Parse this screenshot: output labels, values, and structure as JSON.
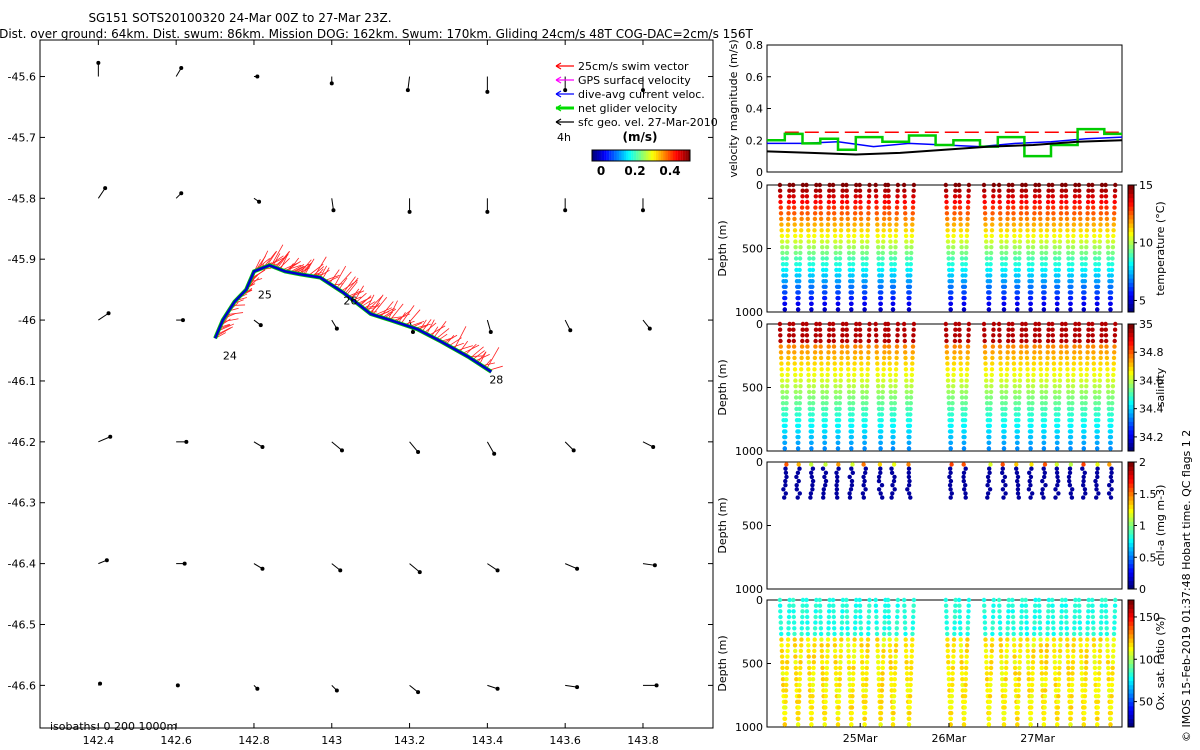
{
  "title_line1": "SG151 SOTS20100320 24-Mar 00Z to 27-Mar 23Z.",
  "title_line2": "Dist. over ground: 64km. Dist. swum: 86km. Mission DOG: 162km. Swum: 170km. Gliding 24cm/s 48T COG-DAC=2cm/s 156T",
  "legend": {
    "items": [
      {
        "label": "25cm/s swim vector",
        "color": "#ff0000"
      },
      {
        "label": "GPS surface velocity",
        "color": "#ff00ff"
      },
      {
        "label": "dive-avg current veloc.",
        "color": "#0000ff"
      },
      {
        "label": "net glider velocity",
        "color": "#00dd00"
      },
      {
        "label": "sfc geo. vel. 27-Mar-2010",
        "color": "#000000"
      }
    ],
    "time_note": "4h",
    "colorbar_unit": "(m/s)",
    "colorbar_ticks": [
      "0",
      "0.2",
      "0.4"
    ]
  },
  "isobaths_label": "isobaths: 0   200  1000m",
  "copyright": "© IMOS 15-Feb-2019 01:37:48 Hobart time. QC flags 1  2",
  "chart_data": [
    {
      "type": "map",
      "xlim": [
        142.25,
        143.98
      ],
      "ylim": [
        -46.67,
        -45.54
      ],
      "xticks": [
        "142.4",
        "142.6",
        "142.8",
        "143",
        "143.2",
        "143.4",
        "143.6",
        "143.8"
      ],
      "yticks": [
        "-45.6",
        "-45.7",
        "-45.8",
        "-45.9",
        "-46",
        "-46.1",
        "-46.2",
        "-46.3",
        "-46.4",
        "-46.5",
        "-46.6"
      ],
      "track_labels": [
        {
          "text": "24",
          "lon": 142.72,
          "lat": -46.035
        },
        {
          "text": "25",
          "lon": 142.81,
          "lat": -45.935
        },
        {
          "text": "26",
          "lon": 143.03,
          "lat": -45.945
        },
        {
          "text": "28",
          "lon": 143.405,
          "lat": -46.075
        }
      ],
      "track": [
        [
          142.7,
          -46.03
        ],
        [
          142.72,
          -46.0
        ],
        [
          142.75,
          -45.97
        ],
        [
          142.78,
          -45.95
        ],
        [
          142.8,
          -45.92
        ],
        [
          142.84,
          -45.91
        ],
        [
          142.88,
          -45.92
        ],
        [
          142.92,
          -45.925
        ],
        [
          142.97,
          -45.93
        ],
        [
          143.03,
          -45.955
        ],
        [
          143.07,
          -45.975
        ],
        [
          143.1,
          -45.99
        ],
        [
          143.15,
          -46.0
        ],
        [
          143.22,
          -46.015
        ],
        [
          143.28,
          -46.035
        ],
        [
          143.35,
          -46.06
        ],
        [
          143.41,
          -46.085
        ]
      ],
      "geo_vectors": [
        {
          "lon": 142.4,
          "lat": -45.6,
          "u": 0.0,
          "v": 0.08
        },
        {
          "lon": 142.6,
          "lat": -45.6,
          "u": 0.03,
          "v": 0.05
        },
        {
          "lon": 142.8,
          "lat": -45.6,
          "u": 0.02,
          "v": 0.0
        },
        {
          "lon": 143.0,
          "lat": -45.6,
          "u": 0.0,
          "v": -0.04
        },
        {
          "lon": 143.2,
          "lat": -45.6,
          "u": -0.01,
          "v": -0.08
        },
        {
          "lon": 143.4,
          "lat": -45.6,
          "u": 0.0,
          "v": -0.09
        },
        {
          "lon": 143.6,
          "lat": -45.6,
          "u": 0.0,
          "v": -0.08
        },
        {
          "lon": 143.8,
          "lat": -45.6,
          "u": 0.0,
          "v": -0.08
        },
        {
          "lon": 142.4,
          "lat": -45.8,
          "u": 0.04,
          "v": 0.06
        },
        {
          "lon": 142.6,
          "lat": -45.8,
          "u": 0.03,
          "v": 0.03
        },
        {
          "lon": 142.8,
          "lat": -45.8,
          "u": 0.03,
          "v": -0.02
        },
        {
          "lon": 143.0,
          "lat": -45.8,
          "u": 0.01,
          "v": -0.07
        },
        {
          "lon": 143.2,
          "lat": -45.8,
          "u": 0.0,
          "v": -0.08
        },
        {
          "lon": 143.4,
          "lat": -45.8,
          "u": 0.0,
          "v": -0.08
        },
        {
          "lon": 143.6,
          "lat": -45.8,
          "u": 0.0,
          "v": -0.07
        },
        {
          "lon": 143.8,
          "lat": -45.8,
          "u": 0.0,
          "v": -0.07
        },
        {
          "lon": 142.4,
          "lat": -46.0,
          "u": 0.06,
          "v": 0.04
        },
        {
          "lon": 142.6,
          "lat": -46.0,
          "u": 0.04,
          "v": 0.0
        },
        {
          "lon": 142.8,
          "lat": -46.0,
          "u": 0.04,
          "v": -0.03
        },
        {
          "lon": 143.0,
          "lat": -46.0,
          "u": 0.03,
          "v": -0.05
        },
        {
          "lon": 143.2,
          "lat": -46.0,
          "u": 0.02,
          "v": -0.07
        },
        {
          "lon": 143.4,
          "lat": -46.0,
          "u": 0.02,
          "v": -0.07
        },
        {
          "lon": 143.6,
          "lat": -46.0,
          "u": 0.03,
          "v": -0.06
        },
        {
          "lon": 143.8,
          "lat": -46.0,
          "u": 0.04,
          "v": -0.05
        },
        {
          "lon": 142.4,
          "lat": -46.2,
          "u": 0.07,
          "v": 0.03
        },
        {
          "lon": 142.6,
          "lat": -46.2,
          "u": 0.06,
          "v": 0.0
        },
        {
          "lon": 142.8,
          "lat": -46.2,
          "u": 0.05,
          "v": -0.03
        },
        {
          "lon": 143.0,
          "lat": -46.2,
          "u": 0.06,
          "v": -0.05
        },
        {
          "lon": 143.2,
          "lat": -46.2,
          "u": 0.05,
          "v": -0.06
        },
        {
          "lon": 143.4,
          "lat": -46.2,
          "u": 0.04,
          "v": -0.07
        },
        {
          "lon": 143.6,
          "lat": -46.2,
          "u": 0.05,
          "v": -0.05
        },
        {
          "lon": 143.8,
          "lat": -46.2,
          "u": 0.06,
          "v": -0.03
        },
        {
          "lon": 142.4,
          "lat": -46.4,
          "u": 0.05,
          "v": 0.02
        },
        {
          "lon": 142.6,
          "lat": -46.4,
          "u": 0.05,
          "v": 0.0
        },
        {
          "lon": 142.8,
          "lat": -46.4,
          "u": 0.05,
          "v": -0.03
        },
        {
          "lon": 143.0,
          "lat": -46.4,
          "u": 0.05,
          "v": -0.04
        },
        {
          "lon": 143.2,
          "lat": -46.4,
          "u": 0.06,
          "v": -0.05
        },
        {
          "lon": 143.4,
          "lat": -46.4,
          "u": 0.06,
          "v": -0.04
        },
        {
          "lon": 143.6,
          "lat": -46.4,
          "u": 0.07,
          "v": -0.03
        },
        {
          "lon": 143.8,
          "lat": -46.4,
          "u": 0.07,
          "v": -0.01
        },
        {
          "lon": 142.4,
          "lat": -46.6,
          "u": 0.01,
          "v": 0.01
        },
        {
          "lon": 142.6,
          "lat": -46.6,
          "u": 0.01,
          "v": 0.0
        },
        {
          "lon": 142.8,
          "lat": -46.6,
          "u": 0.02,
          "v": -0.02
        },
        {
          "lon": 143.0,
          "lat": -46.6,
          "u": 0.03,
          "v": -0.03
        },
        {
          "lon": 143.2,
          "lat": -46.6,
          "u": 0.05,
          "v": -0.04
        },
        {
          "lon": 143.4,
          "lat": -46.6,
          "u": 0.06,
          "v": -0.02
        },
        {
          "lon": 143.6,
          "lat": -46.6,
          "u": 0.07,
          "v": -0.01
        },
        {
          "lon": 143.8,
          "lat": -46.6,
          "u": 0.08,
          "v": 0.0
        }
      ]
    },
    {
      "type": "line",
      "ylabel": "velocity magnitude (m/s)",
      "ylim": [
        0,
        0.8
      ],
      "yticks": [
        "0",
        "0.2",
        "0.4",
        "0.6",
        "0.8"
      ],
      "xlim": [
        0,
        4
      ],
      "series": [
        {
          "name": "swim",
          "color": "#ff0000",
          "dashed": true,
          "x": [
            0.2,
            0.5,
            0.8,
            1.1,
            1.3,
            1.5,
            1.65,
            1.95,
            2.25,
            2.55,
            2.85,
            3.15,
            3.45,
            3.75,
            4.0
          ],
          "y": [
            0.25,
            0.25,
            0.25,
            0.25,
            0.25,
            0.25,
            0.25,
            0.25,
            0.25,
            0.25,
            0.25,
            0.25,
            0.25,
            0.25,
            0.25
          ]
        },
        {
          "name": "dac",
          "color": "#0000ff",
          "x": [
            0,
            0.4,
            0.8,
            1.2,
            1.6,
            2.0,
            2.4,
            2.8,
            3.2,
            3.6,
            4.0
          ],
          "y": [
            0.18,
            0.18,
            0.19,
            0.16,
            0.18,
            0.17,
            0.16,
            0.18,
            0.19,
            0.21,
            0.22
          ]
        },
        {
          "name": "net",
          "color": "#00cc00",
          "x": [
            0,
            0.2,
            0.2,
            0.4,
            0.4,
            0.6,
            0.6,
            0.8,
            0.8,
            1.0,
            1.0,
            1.3,
            1.3,
            1.6,
            1.6,
            1.9,
            1.9,
            2.1,
            2.1,
            2.4,
            2.4,
            2.6,
            2.6,
            2.9,
            2.9,
            3.2,
            3.2,
            3.5,
            3.5,
            3.8,
            3.8,
            4.0
          ],
          "y": [
            0.2,
            0.2,
            0.24,
            0.24,
            0.18,
            0.18,
            0.21,
            0.21,
            0.14,
            0.14,
            0.22,
            0.22,
            0.19,
            0.19,
            0.23,
            0.23,
            0.17,
            0.17,
            0.2,
            0.2,
            0.16,
            0.16,
            0.22,
            0.22,
            0.1,
            0.1,
            0.17,
            0.17,
            0.27,
            0.27,
            0.24,
            0.24
          ]
        },
        {
          "name": "geo",
          "color": "#000000",
          "x": [
            0,
            0.5,
            1.0,
            1.5,
            2.0,
            2.5,
            3.0,
            3.5,
            4.0
          ],
          "y": [
            0.13,
            0.12,
            0.11,
            0.12,
            0.14,
            0.16,
            0.17,
            0.19,
            0.2
          ]
        }
      ]
    },
    {
      "type": "scatter",
      "ylabel": "Depth (m)",
      "ylim": [
        1000,
        0
      ],
      "yticks": [
        "0",
        "500",
        "1000"
      ],
      "colorbar_label": "temperature (°C)",
      "colorbar_ticks": [
        "5",
        "10",
        "15"
      ],
      "clim": [
        4,
        15
      ],
      "dives": [
        0.2,
        0.35,
        0.5,
        0.65,
        0.8,
        0.95,
        1.1,
        1.28,
        1.42,
        1.6,
        2.07,
        2.22,
        2.5,
        2.67,
        2.82,
        2.97,
        3.12,
        3.27,
        3.42,
        3.57,
        3.72,
        3.87
      ]
    },
    {
      "type": "scatter",
      "ylabel": "Depth (m)",
      "ylim": [
        1000,
        0
      ],
      "yticks": [
        "0",
        "500",
        "1000"
      ],
      "colorbar_label": "salinity",
      "colorbar_ticks": [
        "34.2",
        "34.4",
        "34.6",
        "34.8",
        "35"
      ],
      "clim": [
        34.1,
        35.0
      ],
      "dives": [
        0.2,
        0.35,
        0.5,
        0.65,
        0.8,
        0.95,
        1.1,
        1.28,
        1.42,
        1.6,
        2.07,
        2.22,
        2.5,
        2.67,
        2.82,
        2.97,
        3.12,
        3.27,
        3.42,
        3.57,
        3.72,
        3.87
      ]
    },
    {
      "type": "scatter",
      "ylabel": "Depth (m)",
      "ylim": [
        1000,
        0
      ],
      "yticks": [
        "0",
        "500",
        "1000"
      ],
      "colorbar_label": "chl-a (mg m-3)",
      "colorbar_ticks": [
        "0",
        "0.5",
        "1",
        "1.5",
        "2"
      ],
      "clim": [
        0,
        2
      ],
      "dives": [
        0.2,
        0.35,
        0.5,
        0.65,
        0.8,
        0.95,
        1.1,
        1.28,
        1.42,
        1.6,
        2.07,
        2.22,
        2.5,
        2.67,
        2.82,
        2.97,
        3.12,
        3.27,
        3.42,
        3.57,
        3.72,
        3.87
      ]
    },
    {
      "type": "scatter",
      "ylabel": "Depth (m)",
      "ylim": [
        1000,
        0
      ],
      "yticks": [
        "0",
        "500",
        "1000"
      ],
      "xticks": [
        "25Mar",
        "26Mar",
        "27Mar"
      ],
      "colorbar_label": "Ox. sat. ratio (%)",
      "colorbar_ticks": [
        "50",
        "100",
        "150"
      ],
      "clim": [
        20,
        170
      ],
      "dives": [
        0.2,
        0.35,
        0.5,
        0.65,
        0.8,
        0.95,
        1.1,
        1.28,
        1.42,
        1.6,
        2.07,
        2.22,
        2.5,
        2.67,
        2.82,
        2.97,
        3.12,
        3.27,
        3.42,
        3.57,
        3.72,
        3.87
      ]
    }
  ]
}
